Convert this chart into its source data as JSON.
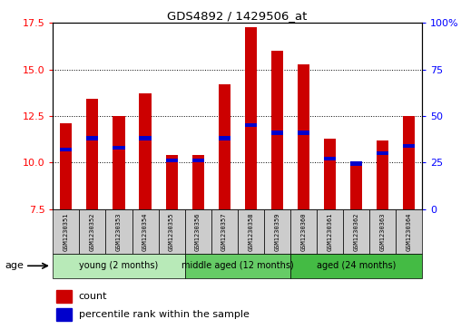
{
  "title": "GDS4892 / 1429506_at",
  "samples": [
    "GSM1230351",
    "GSM1230352",
    "GSM1230353",
    "GSM1230354",
    "GSM1230355",
    "GSM1230356",
    "GSM1230357",
    "GSM1230358",
    "GSM1230359",
    "GSM1230360",
    "GSM1230361",
    "GSM1230362",
    "GSM1230363",
    "GSM1230364"
  ],
  "counts": [
    12.1,
    13.4,
    12.5,
    13.7,
    10.4,
    10.4,
    14.2,
    17.3,
    16.0,
    15.3,
    11.3,
    9.85,
    11.2,
    12.5
  ],
  "percentiles": [
    10.7,
    11.3,
    10.8,
    11.3,
    10.1,
    10.1,
    11.3,
    12.0,
    11.6,
    11.6,
    10.2,
    9.95,
    10.5,
    10.9
  ],
  "ymin": 7.5,
  "ymax": 17.5,
  "yticks": [
    7.5,
    10.0,
    12.5,
    15.0,
    17.5
  ],
  "right_yticks_labels": [
    "0",
    "25",
    "50",
    "75",
    "100%"
  ],
  "right_ytick_vals": [
    7.5,
    10.0,
    12.5,
    15.0,
    17.5
  ],
  "bar_color": "#cc0000",
  "percentile_color": "#0000cc",
  "bg_color": "#ffffff",
  "groups": [
    {
      "label": "young (2 months)",
      "start": 0,
      "end": 5,
      "color": "#aee8ae"
    },
    {
      "label": "middle aged (12 months)",
      "start": 5,
      "end": 9,
      "color": "#66cc66"
    },
    {
      "label": "aged (24 months)",
      "start": 9,
      "end": 14,
      "color": "#44bb44"
    }
  ],
  "legend_count_label": "count",
  "legend_pct_label": "percentile rank within the sample",
  "age_label": "age"
}
